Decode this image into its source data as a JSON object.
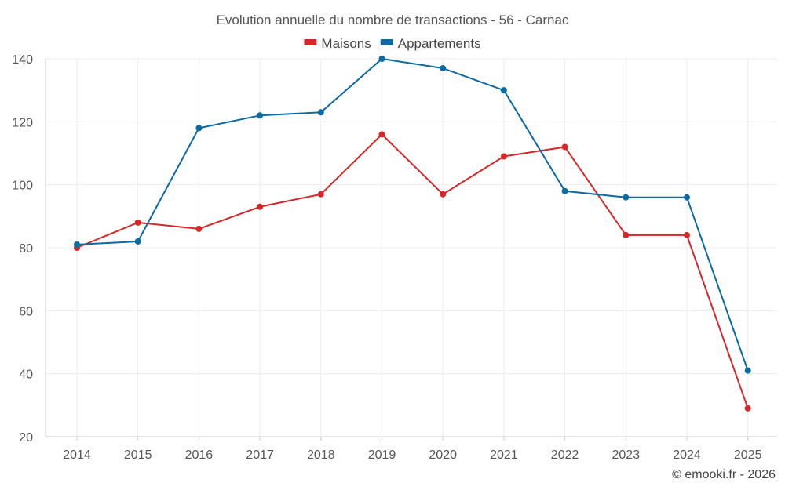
{
  "chart_data": {
    "type": "line",
    "title": "Evolution annuelle du nombre de transactions - 56 - Carnac",
    "categories": [
      "2014",
      "2015",
      "2016",
      "2017",
      "2018",
      "2019",
      "2020",
      "2021",
      "2022",
      "2023",
      "2024",
      "2025"
    ],
    "series": [
      {
        "name": "Maisons",
        "color": "#d62728",
        "values": [
          80,
          88,
          86,
          93,
          97,
          116,
          97,
          109,
          112,
          84,
          84,
          29
        ]
      },
      {
        "name": "Appartements",
        "color": "#0b6aa2",
        "values": [
          81,
          82,
          118,
          122,
          123,
          140,
          137,
          130,
          98,
          96,
          96,
          41
        ]
      }
    ],
    "ylim": [
      20,
      140
    ],
    "yticks": [
      20,
      40,
      60,
      80,
      100,
      120,
      140
    ],
    "xlabel": "",
    "ylabel": "",
    "grid": true,
    "legend": "top-center"
  },
  "credit": "© emooki.fr - 2026"
}
